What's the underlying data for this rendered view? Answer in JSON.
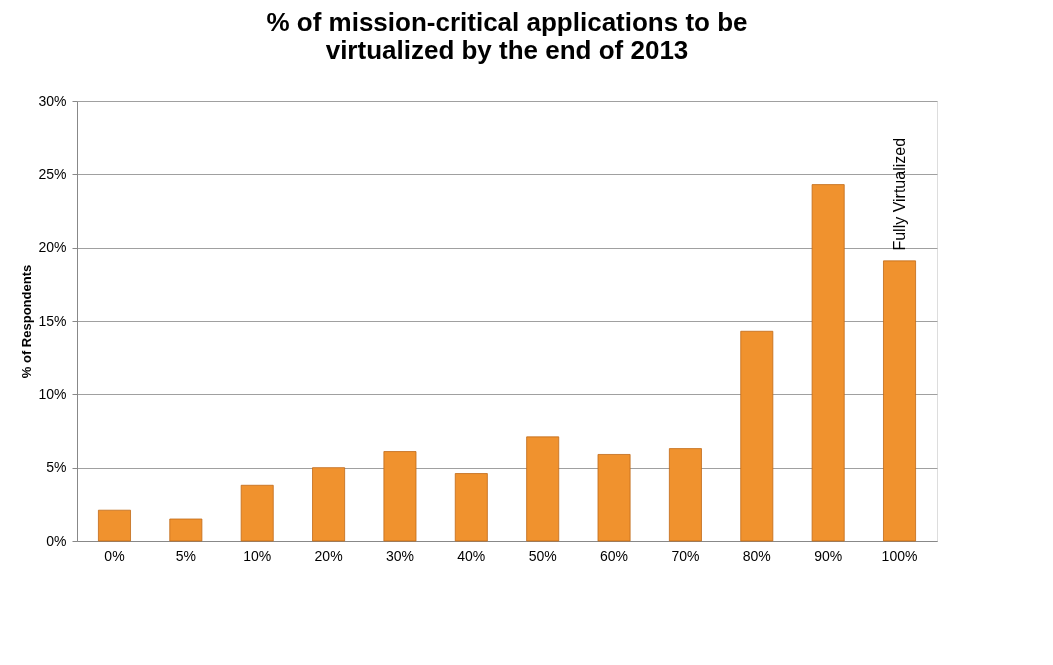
{
  "chart_data": {
    "type": "bar",
    "title": [
      "% of mission-critical applications to be",
      "virtualized by the end of 2013"
    ],
    "ylabel": "% of Respondents",
    "categories": [
      "0%",
      "5%",
      "10%",
      "20%",
      "30%",
      "40%",
      "50%",
      "60%",
      "70%",
      "80%",
      "90%",
      "100%"
    ],
    "values": [
      2.1,
      1.5,
      3.8,
      5.0,
      6.1,
      4.6,
      7.1,
      5.9,
      6.3,
      14.3,
      24.3,
      19.1
    ],
    "color": "#f0922e",
    "ylim": [
      0,
      30
    ],
    "yticks": [
      {
        "value": 0,
        "label": "0%"
      },
      {
        "value": 5,
        "label": "5%"
      },
      {
        "value": 10,
        "label": "10%"
      },
      {
        "value": 15,
        "label": "15%"
      },
      {
        "value": 20,
        "label": "20%"
      },
      {
        "value": 25,
        "label": "25%"
      },
      {
        "value": 30,
        "label": "30%"
      }
    ],
    "grid": "y",
    "annotations": [
      "Fully Virtualized"
    ]
  }
}
